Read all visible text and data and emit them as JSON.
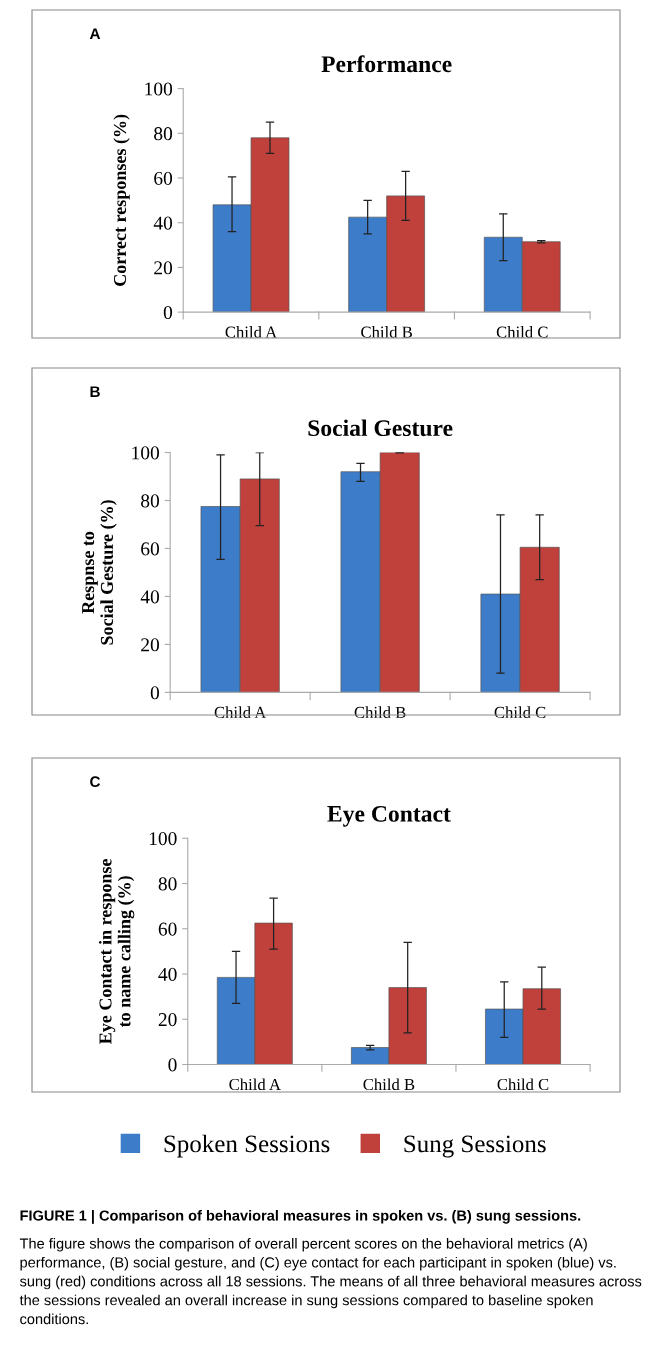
{
  "chart_data": [
    {
      "type": "bar",
      "title": "Performance",
      "ylabel": "Correct responses (%)",
      "annotations": [
        "A"
      ],
      "categories": [
        "Child A",
        "Child B",
        "Child C"
      ],
      "ylim": [
        0,
        100
      ],
      "yticks": [
        0,
        20,
        40,
        60,
        80,
        100
      ],
      "grid": false,
      "legend": false,
      "series": [
        {
          "color": "#3d7cc9",
          "values": [
            48,
            42.5,
            33.5
          ],
          "errors": [
            [
              36,
              60.5
            ],
            [
              35,
              50
            ],
            [
              23,
              44
            ]
          ]
        },
        {
          "color": "#c0403b",
          "values": [
            78,
            52,
            31.5
          ],
          "errors": [
            [
              71,
              85
            ],
            [
              41,
              63
            ],
            [
              31,
              32
            ]
          ]
        }
      ]
    },
    {
      "type": "bar",
      "title": "Social Gesture",
      "ylabel": "Respnse to\nSocial Gesture (%)",
      "annotations": [
        "B"
      ],
      "categories": [
        "Child A",
        "Child B",
        "Child C"
      ],
      "ylim": [
        0,
        100
      ],
      "yticks": [
        0,
        20,
        40,
        60,
        80,
        100
      ],
      "grid": false,
      "legend": false,
      "series": [
        {
          "color": "#3d7cc9",
          "values": [
            77.5,
            92,
            41
          ],
          "errors": [
            [
              55.5,
              99
            ],
            [
              88,
              95.5
            ],
            [
              8,
              74
            ]
          ]
        },
        {
          "color": "#c0403b",
          "values": [
            89,
            100,
            60.5
          ],
          "errors": [
            [
              69.5,
              100
            ],
            [
              100,
              100
            ],
            [
              47,
              74
            ]
          ]
        }
      ]
    },
    {
      "type": "bar",
      "title": "Eye Contact",
      "ylabel": "Eye Contact in response\nto name calling (%)",
      "annotations": [
        "C",
        "FIGURE 1 | Comparison of behavioral measures in spoken vs. (B) sung sessions.",
        "The figure shows the comparison of overall percent scores on the behavioral metrics (A) performance, (B) social gesture, and (C) eye contact for each participant in spoken (blue) vs. sung (red) conditions across all 18 sessions. The means of all three behavioral measures across the sessions revealed an overall increase in sung sessions compared to baseline spoken conditions."
      ],
      "categories": [
        "Child A",
        "Child B",
        "Child C"
      ],
      "ylim": [
        0,
        100
      ],
      "yticks": [
        0,
        20,
        40,
        60,
        80,
        100
      ],
      "grid": false,
      "legend": "bottom",
      "series": [
        {
          "name": "Spoken Sessions",
          "color": "#3d7cc9",
          "values": [
            38.5,
            7.5,
            24.5
          ],
          "errors": [
            [
              27,
              50
            ],
            [
              6.5,
              8.5
            ],
            [
              12,
              36.5
            ]
          ]
        },
        {
          "name": "Sung Sessions",
          "color": "#c0403b",
          "values": [
            62.5,
            34,
            33.5
          ],
          "errors": [
            [
              51,
              73.5
            ],
            [
              14,
              54
            ],
            [
              24.5,
              43
            ]
          ]
        }
      ]
    }
  ]
}
